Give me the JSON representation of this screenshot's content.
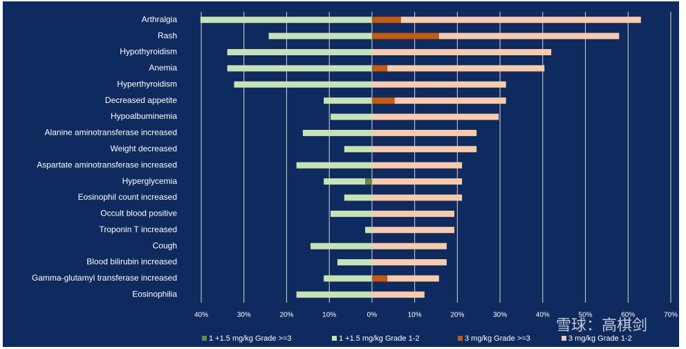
{
  "chart_data": {
    "type": "bar",
    "orientation": "horizontal",
    "stacked": true,
    "grid": true,
    "categories": [
      "Arthralgia",
      "Rash",
      "Hypothyroidism",
      "Anemia",
      "Hyperthyroidism",
      "Decreased appetite",
      "Hypoalbuminemia",
      "Alanine aminotransferase increased",
      "Weight decreased",
      "Aspartate aminotransferase increased",
      "Hyperglycemia",
      "Eosinophil count increased",
      "Occult blood positive",
      "Troponin T increased",
      "Cough",
      "Blood bilirubin increased",
      "Gamma-glutamyl transferase increased",
      "Eosinophilia"
    ],
    "series": [
      {
        "name": "1 +1.5 mg/kg Grade >=3",
        "color": "#5e8f3e",
        "values": [
          0,
          0,
          0,
          0,
          0,
          0,
          0,
          0,
          0,
          0,
          -1.6,
          0,
          0,
          0,
          0,
          0,
          0,
          0
        ]
      },
      {
        "name": "1 +1.5 mg/kg Grade 1-2",
        "color": "#c7e2b6",
        "values": [
          -40.2,
          -24.2,
          -33.9,
          -33.9,
          -32.3,
          -11.3,
          -9.7,
          -16.2,
          -6.5,
          -17.7,
          -9.7,
          -6.5,
          -9.7,
          -1.6,
          -14.4,
          -8.1,
          -11.3,
          -17.7
        ]
      },
      {
        "name": "3 mg/kg Grade >=3",
        "color": "#c55a11",
        "values": [
          6.8,
          15.7,
          0,
          3.6,
          0,
          5.3,
          0,
          0,
          0,
          0,
          0,
          0,
          0,
          0,
          0,
          0,
          3.6,
          0
        ]
      },
      {
        "name": "3 mg/kg Grade 1-2",
        "color": "#f8cbad",
        "values": [
          56.2,
          42.2,
          42.0,
          36.8,
          31.4,
          26.1,
          29.7,
          24.5,
          24.5,
          21.1,
          21.1,
          21.1,
          19.3,
          19.3,
          17.5,
          17.5,
          12.1,
          12.3
        ]
      }
    ],
    "xlim": [
      -40,
      70
    ],
    "xticks": [
      {
        "value": -40,
        "label": "40%"
      },
      {
        "value": -30,
        "label": "30%"
      },
      {
        "value": -20,
        "label": "20%"
      },
      {
        "value": -10,
        "label": "10%"
      },
      {
        "value": 0,
        "label": "0%"
      },
      {
        "value": 10,
        "label": "10%"
      },
      {
        "value": 20,
        "label": "20%"
      },
      {
        "value": 30,
        "label": "30%"
      },
      {
        "value": 40,
        "label": "40%"
      },
      {
        "value": 50,
        "label": "50%"
      },
      {
        "value": 60,
        "label": "60%"
      },
      {
        "value": 70,
        "label": "70%"
      }
    ],
    "legend": "bottom",
    "background": "#0f2a5e",
    "watermark": "雪球：高棋剑"
  }
}
